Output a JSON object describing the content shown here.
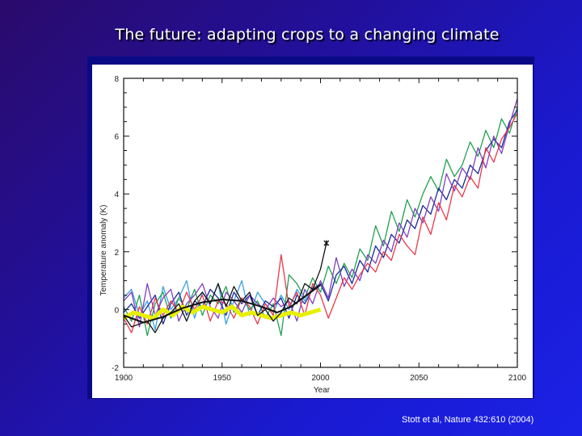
{
  "slide": {
    "title": "The future: adapting crops to a changing climate",
    "citation": "Stott et al, Nature 432:610 (2004)",
    "colors": {
      "background_top_left": "#2a0a6a",
      "background_bottom_right": "#1b22e6",
      "title_text": "#ffffff",
      "panel": "#ffffff"
    }
  },
  "chart_data": {
    "type": "line",
    "title": "",
    "xlabel": "Year",
    "ylabel": "Temperature anomaly (K)",
    "xlim": [
      1900,
      2100
    ],
    "ylim": [
      -2,
      8
    ],
    "x_ticks": [
      1900,
      1950,
      2000,
      2050,
      2100
    ],
    "x_tick_labels": [
      "1900",
      "1950",
      "2000",
      "2050",
      "2100"
    ],
    "x_minor_step": 10,
    "y_ticks": [
      -2,
      0,
      2,
      4,
      6,
      8
    ],
    "y_tick_labels": [
      "-2",
      "0",
      "2",
      "4",
      "6",
      "8"
    ],
    "y_minor_step": 0.5,
    "grid": false,
    "legend": "none",
    "series": [
      {
        "name": "model run (red)",
        "color": "#e8384a",
        "x": [
          1900,
          1904,
          1908,
          1912,
          1916,
          1920,
          1924,
          1928,
          1932,
          1936,
          1940,
          1944,
          1948,
          1952,
          1956,
          1960,
          1964,
          1968,
          1972,
          1976,
          1980,
          1984,
          1988,
          1992,
          1996,
          2000,
          2004,
          2008,
          2012,
          2016,
          2020,
          2024,
          2028,
          2032,
          2036,
          2040,
          2044,
          2048,
          2052,
          2056,
          2060,
          2064,
          2068,
          2072,
          2076,
          2080,
          2084,
          2088,
          2092,
          2096,
          2100
        ],
        "values": [
          -0.3,
          -0.8,
          0.1,
          -0.5,
          0.4,
          -0.2,
          0.3,
          -0.1,
          0.6,
          0.0,
          0.5,
          -0.4,
          0.3,
          0.2,
          -0.3,
          0.4,
          0.1,
          -0.5,
          0.2,
          -0.2,
          1.9,
          0.1,
          0.6,
          -0.2,
          0.9,
          0.5,
          -0.3,
          0.4,
          1.1,
          0.7,
          1.2,
          1.6,
          1.3,
          2.0,
          1.7,
          2.6,
          2.2,
          1.9,
          3.2,
          2.6,
          3.7,
          3.1,
          4.3,
          3.9,
          4.6,
          4.2,
          5.6,
          5.1,
          5.9,
          6.3,
          6.8
        ]
      },
      {
        "name": "model run (green)",
        "color": "#22a050",
        "x": [
          1900,
          1904,
          1908,
          1912,
          1916,
          1920,
          1924,
          1928,
          1932,
          1936,
          1940,
          1944,
          1948,
          1952,
          1956,
          1960,
          1964,
          1968,
          1972,
          1976,
          1980,
          1984,
          1988,
          1992,
          1996,
          2000,
          2004,
          2008,
          2012,
          2016,
          2020,
          2024,
          2028,
          2032,
          2036,
          2040,
          2044,
          2048,
          2052,
          2056,
          2060,
          2064,
          2068,
          2072,
          2076,
          2080,
          2084,
          2088,
          2092,
          2096,
          2100
        ],
        "values": [
          0.1,
          -0.4,
          0.5,
          -0.9,
          0.2,
          0.6,
          -0.3,
          0.4,
          0.0,
          0.7,
          -0.2,
          0.5,
          0.2,
          0.8,
          -0.1,
          0.4,
          0.0,
          0.3,
          -0.3,
          0.2,
          -0.9,
          1.2,
          0.9,
          0.4,
          1.1,
          0.6,
          1.5,
          0.9,
          1.6,
          1.1,
          2.1,
          1.7,
          2.9,
          2.2,
          3.4,
          2.7,
          3.8,
          3.2,
          4.0,
          4.6,
          4.1,
          5.2,
          4.6,
          5.0,
          5.8,
          5.3,
          6.2,
          5.6,
          6.6,
          6.1,
          7.0
        ]
      },
      {
        "name": "model run (purple)",
        "color": "#8040c0",
        "x": [
          1900,
          1904,
          1908,
          1912,
          1916,
          1920,
          1924,
          1928,
          1932,
          1936,
          1940,
          1944,
          1948,
          1952,
          1956,
          1960,
          1964,
          1968,
          1972,
          1976,
          1980,
          1984,
          1988,
          1992,
          1996,
          2000,
          2004,
          2008,
          2012,
          2016,
          2020,
          2024,
          2028,
          2032,
          2036,
          2040,
          2044,
          2048,
          2052,
          2056,
          2060,
          2064,
          2068,
          2072,
          2076,
          2080,
          2084,
          2088,
          2092,
          2096,
          2100
        ],
        "values": [
          0.3,
          0.6,
          -0.6,
          0.9,
          -0.2,
          0.4,
          0.7,
          -0.4,
          0.2,
          0.5,
          0.9,
          0.1,
          -0.3,
          0.6,
          0.3,
          -0.1,
          0.5,
          0.2,
          0.0,
          0.4,
          0.1,
          0.3,
          -0.4,
          0.7,
          0.2,
          1.0,
          0.4,
          1.8,
          0.8,
          1.4,
          1.0,
          1.9,
          1.6,
          2.4,
          2.0,
          3.0,
          2.5,
          3.5,
          3.0,
          3.9,
          3.4,
          4.7,
          4.1,
          4.9,
          4.5,
          5.6,
          4.9,
          6.0,
          5.4,
          6.4,
          7.3
        ]
      },
      {
        "name": "model run (dark blue)",
        "color": "#1a2a9a",
        "x": [
          1900,
          1904,
          1908,
          1912,
          1916,
          1920,
          1924,
          1928,
          1932,
          1936,
          1940,
          1944,
          1948,
          1952,
          1956,
          1960,
          1964,
          1968,
          1972,
          1976,
          1980,
          1984,
          1988,
          1992,
          1996,
          2000,
          2004,
          2008,
          2012,
          2016,
          2020,
          2024,
          2028,
          2032,
          2036,
          2040,
          2044,
          2048,
          2052,
          2056,
          2060,
          2064,
          2068,
          2072,
          2076,
          2080,
          2084,
          2088,
          2092,
          2096,
          2100
        ],
        "values": [
          -0.1,
          0.2,
          -0.3,
          0.1,
          0.5,
          -0.5,
          0.2,
          0.6,
          -0.2,
          0.3,
          0.1,
          0.7,
          0.4,
          -0.2,
          0.6,
          0.2,
          0.5,
          -0.2,
          0.3,
          0.1,
          0.4,
          -0.3,
          0.5,
          0.2,
          0.7,
          0.9,
          0.3,
          1.2,
          1.5,
          0.9,
          1.7,
          1.3,
          2.2,
          1.8,
          2.6,
          2.3,
          3.1,
          2.8,
          3.6,
          3.3,
          4.2,
          3.8,
          4.5,
          4.2,
          5.0,
          4.7,
          5.5,
          5.9,
          5.6,
          6.5,
          6.9
        ]
      },
      {
        "name": "model run (light blue)",
        "color": "#3aa0e0",
        "x": [
          1900,
          1904,
          1908,
          1912,
          1916,
          1920,
          1924,
          1928,
          1932,
          1936,
          1940,
          1944,
          1948,
          1952,
          1956,
          1960,
          1964,
          1968,
          1972,
          1976,
          1980,
          1984,
          1988,
          1992,
          1996
        ],
        "values": [
          0.4,
          0.7,
          -0.2,
          0.3,
          -0.7,
          0.8,
          0.0,
          0.4,
          1.0,
          -0.3,
          0.6,
          0.2,
          0.9,
          -0.5,
          0.3,
          1.0,
          -0.2,
          0.6,
          0.2,
          -0.1,
          0.5,
          0.0,
          0.7,
          0.3,
          0.8
        ]
      },
      {
        "name": "observations (black)",
        "color": "#111111",
        "x": [
          1900,
          1904,
          1908,
          1912,
          1916,
          1920,
          1924,
          1928,
          1932,
          1936,
          1940,
          1944,
          1948,
          1952,
          1956,
          1960,
          1964,
          1968,
          1972,
          1976,
          1980,
          1984,
          1988,
          1992,
          1996,
          2000,
          2003
        ],
        "values": [
          -0.2,
          -0.6,
          -0.5,
          -0.4,
          -0.8,
          -0.3,
          -0.1,
          0.2,
          -0.4,
          0.3,
          0.6,
          0.2,
          0.9,
          0.1,
          0.8,
          0.3,
          0.6,
          -0.2,
          0.0,
          -0.4,
          -0.1,
          0.4,
          0.2,
          0.9,
          0.7,
          1.4,
          2.3
        ]
      },
      {
        "name": "smoothed observations (black)",
        "color": "#111111",
        "x": [
          1900,
          1910,
          1920,
          1930,
          1940,
          1950,
          1960,
          1970,
          1978,
          1985,
          1990,
          1995,
          2000
        ],
        "values": [
          -0.2,
          -0.45,
          -0.25,
          0.05,
          0.25,
          0.35,
          0.3,
          0.1,
          -0.1,
          0.1,
          0.35,
          0.6,
          0.85
        ]
      },
      {
        "name": "natural-only ensemble (yellow)",
        "color": "#e8f000",
        "x": [
          1900,
          1905,
          1910,
          1915,
          1920,
          1925,
          1930,
          1935,
          1940,
          1945,
          1950,
          1955,
          1960,
          1965,
          1970,
          1975,
          1980,
          1985,
          1990,
          1995,
          2000
        ],
        "values": [
          -0.3,
          -0.1,
          -0.2,
          -0.3,
          0.0,
          -0.2,
          0.1,
          -0.1,
          0.1,
          0.0,
          -0.1,
          0.1,
          -0.2,
          -0.1,
          -0.2,
          -0.3,
          -0.2,
          -0.1,
          -0.2,
          -0.1,
          0.0
        ]
      }
    ],
    "annotations": [
      {
        "type": "marker",
        "symbol": "asterisk",
        "x": 2003,
        "y": 2.3,
        "color": "#111111"
      }
    ]
  }
}
